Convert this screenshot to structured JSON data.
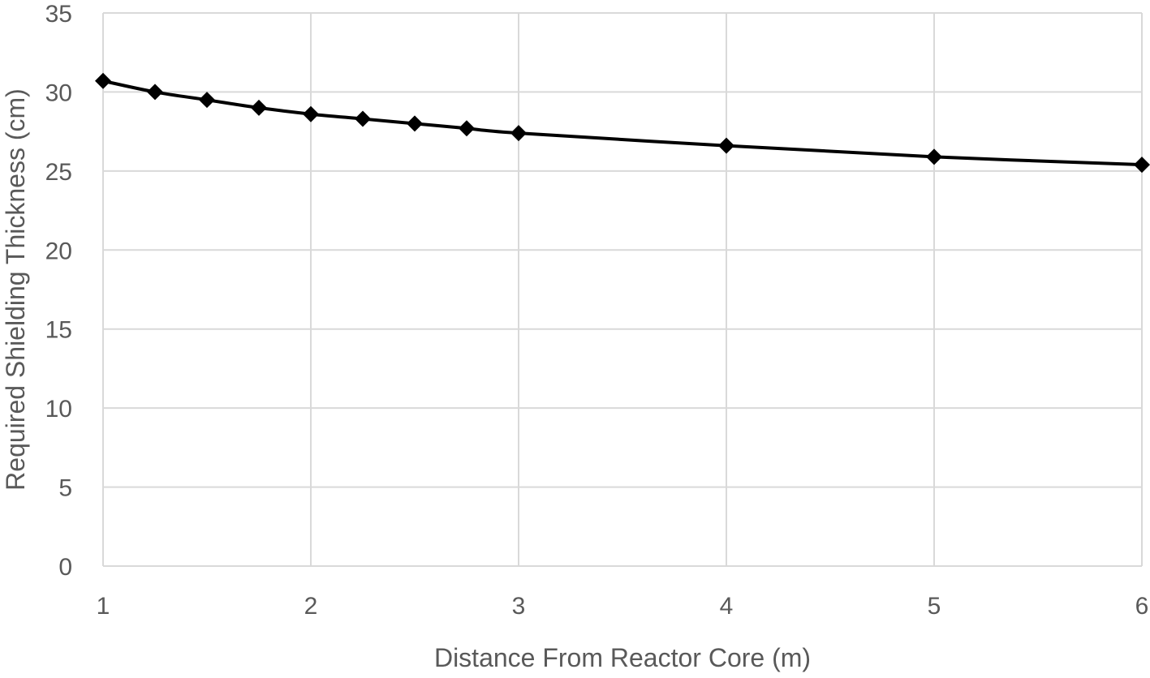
{
  "chart_data": {
    "type": "line",
    "title": "",
    "xlabel": "Distance From Reactor Core (m)",
    "ylabel": "Required Shielding Thickness (cm)",
    "xlim": [
      1,
      6
    ],
    "ylim": [
      0,
      35
    ],
    "xticks": [
      1,
      2,
      3,
      4,
      5,
      6
    ],
    "yticks": [
      0,
      5,
      10,
      15,
      20,
      25,
      30,
      35
    ],
    "grid": true,
    "legend": "none",
    "marker": "diamond",
    "line_color": "#000000",
    "series": [
      {
        "x": [
          1,
          1.25,
          1.5,
          1.75,
          2,
          2.25,
          2.5,
          2.75,
          3,
          4,
          5,
          6
        ],
        "y": [
          30.7,
          30.0,
          29.5,
          29.0,
          28.6,
          28.3,
          28.0,
          27.7,
          27.4,
          26.6,
          25.9,
          25.4
        ]
      }
    ]
  }
}
